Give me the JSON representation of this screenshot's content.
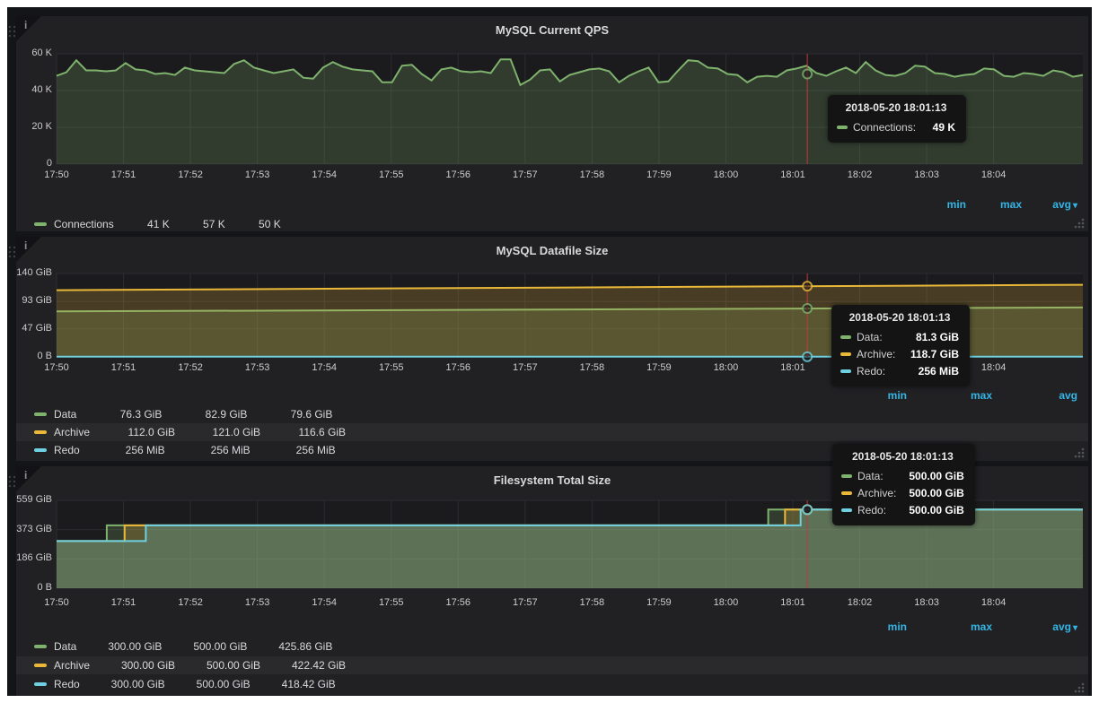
{
  "dashboard": {
    "background": "#141518",
    "panel_background": "#212124",
    "plot_background": "#1b1b1e",
    "grid_color": "#2c2d30",
    "link_color": "#33b5e5",
    "crosshair_color": "#bf3b3b",
    "crosshair_time": "2018-05-20 18:01:13"
  },
  "panels": [
    {
      "title": "MySQL Current QPS",
      "legend": {
        "headers": [
          "min",
          "max",
          "avg"
        ],
        "sort_caret_on": "avg",
        "rows": [
          {
            "label": "Connections",
            "color": "#7eb26d",
            "stats": [
              "41 K",
              "57 K",
              "50 K"
            ]
          }
        ]
      },
      "tooltip": {
        "time": "2018-05-20 18:01:13",
        "rows": [
          {
            "label": "Connections:",
            "color": "#7eb26d",
            "value": "49 K"
          }
        ]
      }
    },
    {
      "title": "MySQL Datafile Size",
      "legend": {
        "headers": [
          "min",
          "max",
          "avg"
        ],
        "sort_caret_on": null,
        "rows": [
          {
            "label": "Data",
            "color": "#7eb26d",
            "stats": [
              "76.3 GiB",
              "82.9 GiB",
              "79.6 GiB"
            ]
          },
          {
            "label": "Archive",
            "color": "#eab839",
            "stats": [
              "112.0 GiB",
              "121.0 GiB",
              "116.6 GiB"
            ]
          },
          {
            "label": "Redo",
            "color": "#6ed0e0",
            "stats": [
              "256 MiB",
              "256 MiB",
              "256 MiB"
            ]
          }
        ]
      },
      "tooltip": {
        "time": "2018-05-20 18:01:13",
        "rows": [
          {
            "label": "Data:",
            "color": "#7eb26d",
            "value": "81.3 GiB"
          },
          {
            "label": "Archive:",
            "color": "#eab839",
            "value": "118.7 GiB"
          },
          {
            "label": "Redo:",
            "color": "#6ed0e0",
            "value": "256 MiB"
          }
        ]
      }
    },
    {
      "title": "Filesystem Total Size",
      "legend": {
        "headers": [
          "min",
          "max",
          "avg"
        ],
        "sort_caret_on": "avg",
        "rows": [
          {
            "label": "Data",
            "color": "#7eb26d",
            "stats": [
              "300.00 GiB",
              "500.00 GiB",
              "425.86 GiB"
            ]
          },
          {
            "label": "Archive",
            "color": "#eab839",
            "stats": [
              "300.00 GiB",
              "500.00 GiB",
              "422.42 GiB"
            ]
          },
          {
            "label": "Redo",
            "color": "#6ed0e0",
            "stats": [
              "300.00 GiB",
              "500.00 GiB",
              "418.42 GiB"
            ]
          }
        ]
      },
      "tooltip": {
        "time": "2018-05-20 18:01:13",
        "rows": [
          {
            "label": "Data:",
            "color": "#7eb26d",
            "value": "500.00 GiB"
          },
          {
            "label": "Archive:",
            "color": "#eab839",
            "value": "500.00 GiB"
          },
          {
            "label": "Redo:",
            "color": "#6ed0e0",
            "value": "500.00 GiB"
          }
        ]
      }
    }
  ],
  "chart_data": [
    {
      "type": "line",
      "title": "MySQL Current QPS",
      "x_start_time": "17:50",
      "x_seconds_total": 920,
      "x_ticks": [
        "17:50",
        "17:51",
        "17:52",
        "17:53",
        "17:54",
        "17:55",
        "17:56",
        "17:57",
        "17:58",
        "17:59",
        "18:00",
        "18:01",
        "18:02",
        "18:03",
        "18:04"
      ],
      "x_tick_interval_seconds": 60,
      "ylim": [
        0,
        60
      ],
      "y_unit": "K (queries/s)",
      "y_ticks": [
        {
          "value": 60,
          "label": "60 K"
        },
        {
          "value": 40,
          "label": "40 K"
        },
        {
          "value": 20,
          "label": "20 K"
        },
        {
          "value": 0,
          "label": "0"
        }
      ],
      "series": [
        {
          "name": "Connections",
          "color": "#7eb26d",
          "values": [
            48,
            50,
            56.5,
            51,
            51,
            50.5,
            51,
            55,
            51.5,
            51,
            49,
            49.5,
            48.5,
            52.5,
            51,
            50.5,
            50,
            49.5,
            54.5,
            56.5,
            52.5,
            51,
            49.5,
            50.5,
            51.5,
            47,
            46.5,
            52.5,
            55.5,
            53,
            51.5,
            51,
            50.5,
            44.5,
            44.5,
            53.5,
            54,
            49,
            45.5,
            51.5,
            52.5,
            50.5,
            50,
            50.5,
            49.5,
            57,
            57,
            43,
            46,
            51,
            51.5,
            45,
            48.5,
            50,
            51.5,
            52,
            50.5,
            44.5,
            48,
            50.5,
            52.5,
            44.5,
            45,
            51,
            56.5,
            56,
            52.5,
            52,
            49,
            48.5,
            44.5,
            47.5,
            48,
            47.5,
            51,
            52,
            53.5,
            49.5,
            48,
            50.5,
            52.5,
            49.5,
            55.5,
            51,
            48.5,
            48,
            49.5,
            53.5,
            53,
            49.5,
            49,
            47.5,
            48.5,
            49,
            52,
            51.5,
            48,
            47.5,
            49.5,
            49,
            48,
            51,
            50,
            47.5,
            48.5
          ]
        }
      ],
      "hover": {
        "t_seconds": 673,
        "values": [
          49
        ]
      },
      "stats": {
        "Connections": {
          "min": 41,
          "max": 57,
          "avg": 50
        }
      }
    },
    {
      "type": "line",
      "title": "MySQL Datafile Size",
      "x_start_time": "17:50",
      "x_seconds_total": 920,
      "x_ticks": [
        "17:50",
        "17:51",
        "17:52",
        "17:53",
        "17:54",
        "17:55",
        "17:56",
        "17:57",
        "17:58",
        "17:59",
        "18:00",
        "18:01",
        "18:02",
        "18:03",
        "18:04"
      ],
      "x_tick_interval_seconds": 60,
      "ylim": [
        0,
        140
      ],
      "y_unit": "GiB",
      "y_ticks": [
        {
          "value": 140,
          "label": "140 GiB"
        },
        {
          "value": 93,
          "label": "93 GiB"
        },
        {
          "value": 47,
          "label": "47 GiB"
        },
        {
          "value": 0,
          "label": "0 B"
        }
      ],
      "series": [
        {
          "name": "Data",
          "color": "#7eb26d",
          "points": [
            [
              0,
              76.3
            ],
            [
              920,
              82.9
            ]
          ]
        },
        {
          "name": "Archive",
          "color": "#eab839",
          "points": [
            [
              0,
              112.0
            ],
            [
              920,
              121.0
            ]
          ]
        },
        {
          "name": "Redo",
          "color": "#6ed0e0",
          "points": [
            [
              0,
              0.25
            ],
            [
              920,
              0.25
            ]
          ]
        }
      ],
      "hover": {
        "t_seconds": 673,
        "values": [
          81.3,
          118.7,
          0.25
        ]
      },
      "stats": {
        "Data": {
          "min": 76.3,
          "max": 82.9,
          "avg": 79.6
        },
        "Archive": {
          "min": 112.0,
          "max": 121.0,
          "avg": 116.6
        },
        "Redo_MiB": {
          "min": 256,
          "max": 256,
          "avg": 256
        }
      }
    },
    {
      "type": "line",
      "title": "Filesystem Total Size",
      "x_start_time": "17:50",
      "x_seconds_total": 920,
      "x_ticks": [
        "17:50",
        "17:51",
        "17:52",
        "17:53",
        "17:54",
        "17:55",
        "17:56",
        "17:57",
        "17:58",
        "17:59",
        "18:00",
        "18:01",
        "18:02",
        "18:03",
        "18:04"
      ],
      "x_tick_interval_seconds": 60,
      "ylim": [
        0,
        559
      ],
      "y_unit": "GiB",
      "y_ticks": [
        {
          "value": 559,
          "label": "559 GiB"
        },
        {
          "value": 373,
          "label": "373 GiB"
        },
        {
          "value": 186,
          "label": "186 GiB"
        },
        {
          "value": 0,
          "label": "0 B"
        }
      ],
      "series": [
        {
          "name": "Data",
          "color": "#7eb26d",
          "points": [
            [
              0,
              300
            ],
            [
              45,
              300
            ],
            [
              45,
              400
            ],
            [
              638,
              400
            ],
            [
              638,
              500
            ],
            [
              920,
              500
            ]
          ]
        },
        {
          "name": "Archive",
          "color": "#eab839",
          "points": [
            [
              0,
              300
            ],
            [
              61,
              300
            ],
            [
              61,
              400
            ],
            [
              653,
              400
            ],
            [
              653,
              500
            ],
            [
              920,
              500
            ]
          ]
        },
        {
          "name": "Redo",
          "color": "#6ed0e0",
          "points": [
            [
              0,
              300
            ],
            [
              80,
              300
            ],
            [
              80,
              400
            ],
            [
              667,
              400
            ],
            [
              667,
              500
            ],
            [
              920,
              500
            ]
          ]
        }
      ],
      "hover": {
        "t_seconds": 673,
        "values": [
          500,
          500,
          500
        ]
      },
      "stats": {
        "Data": {
          "min": 300.0,
          "max": 500.0,
          "avg": 425.86
        },
        "Archive": {
          "min": 300.0,
          "max": 500.0,
          "avg": 422.42
        },
        "Redo": {
          "min": 300.0,
          "max": 500.0,
          "avg": 418.42
        }
      }
    }
  ]
}
